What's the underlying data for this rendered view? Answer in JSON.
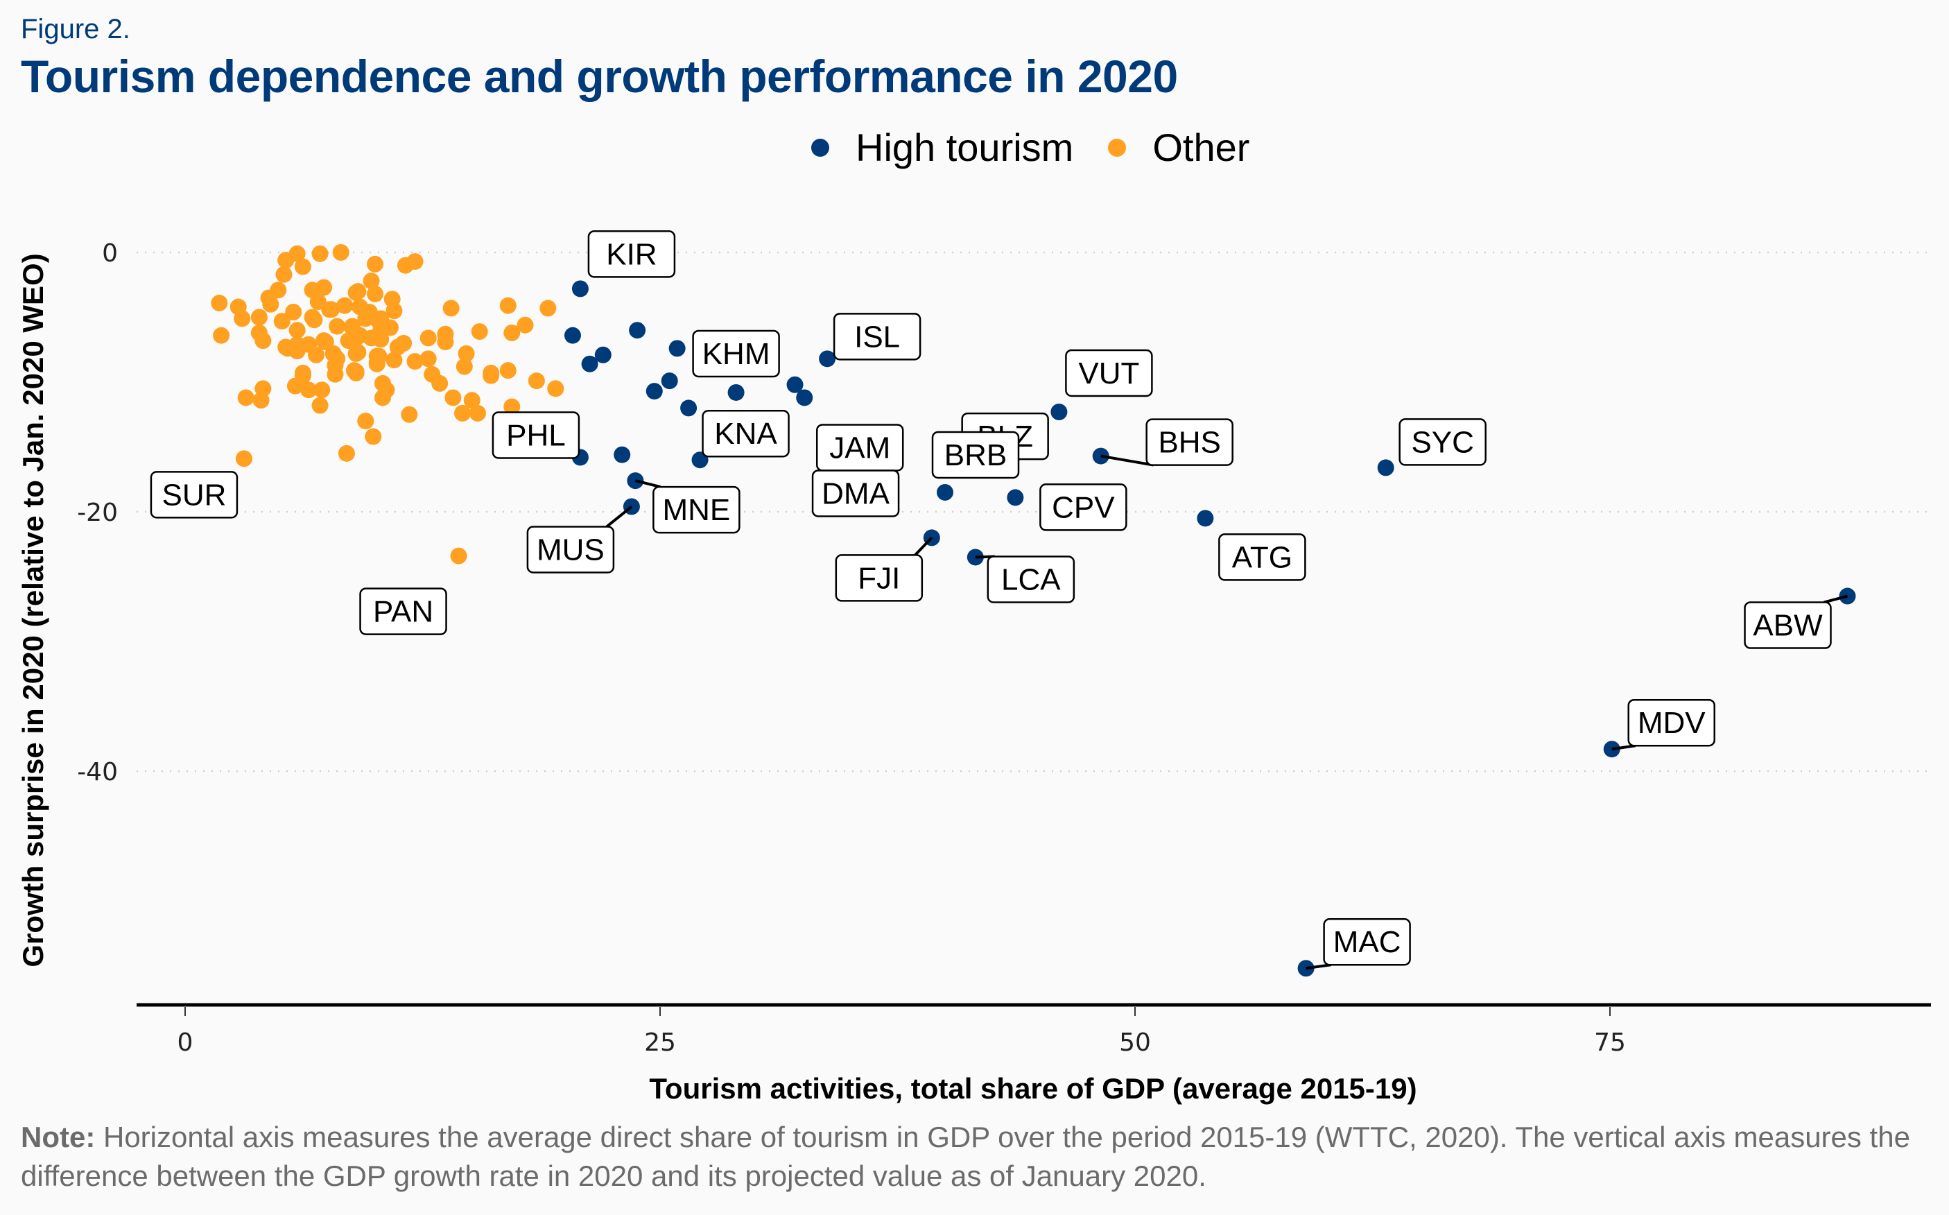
{
  "header": {
    "figure_label": "Figure 2.",
    "title": "Tourism dependence and growth performance in 2020"
  },
  "legend": [
    {
      "label": "High tourism",
      "color": "#003a78"
    },
    {
      "label": "Other",
      "color": "#ffa020"
    }
  ],
  "note": {
    "prefix": "Note:",
    "text": " Horizontal axis measures the average direct share of tourism in GDP over the period 2015-19 (WTTC, 2020). The vertical axis measures the difference between the GDP growth rate in 2020 and its projected value as of January 2020."
  },
  "chart_data": {
    "type": "scatter",
    "title": "Tourism dependence and growth performance in 2020",
    "xlabel": "Tourism activities, total share of GDP (average 2015-19)",
    "ylabel": "Growth surprise in 2020 (relative to Jan. 2020 WEO)",
    "xlim": [
      -1.5,
      91.5
    ],
    "ylim": [
      -57.5,
      1.5
    ],
    "xticks": [
      0,
      25,
      50,
      75
    ],
    "yticks": [
      0,
      -20,
      -40
    ],
    "grid": "horizontal dotted",
    "legend_position": "top",
    "series": [
      {
        "name": "High tourism",
        "color": "#003a78",
        "points": [
          {
            "x": 20.8,
            "y": -2.8,
            "label": "KIR"
          },
          {
            "x": 20.4,
            "y": -6.4
          },
          {
            "x": 23.8,
            "y": -6.0
          },
          {
            "x": 22.0,
            "y": -7.9
          },
          {
            "x": 21.3,
            "y": -8.6
          },
          {
            "x": 25.9,
            "y": -7.4
          },
          {
            "x": 25.5,
            "y": -9.9
          },
          {
            "x": 24.7,
            "y": -10.7
          },
          {
            "x": 29.0,
            "y": -10.8,
            "label": "KHM"
          },
          {
            "x": 26.5,
            "y": -12.0
          },
          {
            "x": 33.8,
            "y": -8.2,
            "label": "ISL"
          },
          {
            "x": 32.1,
            "y": -10.2
          },
          {
            "x": 32.6,
            "y": -11.2,
            "label": "JAM"
          },
          {
            "x": 20.8,
            "y": -15.8,
            "label": "PHL"
          },
          {
            "x": 23.0,
            "y": -15.6
          },
          {
            "x": 27.1,
            "y": -16.0,
            "label": "KNA"
          },
          {
            "x": 23.7,
            "y": -17.6,
            "label": "MNE"
          },
          {
            "x": 23.5,
            "y": -19.6,
            "label": "MUS"
          },
          {
            "x": 36.9,
            "y": -15.8,
            "label": "DMA"
          },
          {
            "x": 40.9,
            "y": -16.1,
            "label": "BLZ"
          },
          {
            "x": 40.0,
            "y": -18.5,
            "label": "BRB"
          },
          {
            "x": 39.3,
            "y": -22.0,
            "label": "FJI"
          },
          {
            "x": 46.0,
            "y": -12.3,
            "label": "VUT"
          },
          {
            "x": 48.2,
            "y": -15.7,
            "label": "BHS"
          },
          {
            "x": 43.7,
            "y": -18.9,
            "label": "CPV"
          },
          {
            "x": 41.6,
            "y": -23.5,
            "label": "LCA"
          },
          {
            "x": 53.7,
            "y": -20.5,
            "label": "ATG"
          },
          {
            "x": 63.2,
            "y": -16.6,
            "label": "SYC"
          },
          {
            "x": 87.5,
            "y": -26.5,
            "label": "ABW"
          },
          {
            "x": 75.1,
            "y": -38.3,
            "label": "MDV"
          },
          {
            "x": 59.0,
            "y": -55.2,
            "label": "MAC"
          }
        ]
      },
      {
        "name": "Other",
        "color": "#ffa020",
        "points": [
          {
            "x": 3.1,
            "y": -15.9,
            "label": "SUR"
          },
          {
            "x": 14.4,
            "y": -23.4,
            "label": "PAN"
          },
          {
            "x": 1.8,
            "y": -3.9
          },
          {
            "x": 1.9,
            "y": -6.4
          },
          {
            "x": 2.8,
            "y": -4.2
          },
          {
            "x": 3.0,
            "y": -5.1
          },
          {
            "x": 5.9,
            "y": -0.1
          },
          {
            "x": 5.3,
            "y": -0.6
          },
          {
            "x": 6.2,
            "y": -1.1
          },
          {
            "x": 5.2,
            "y": -1.7
          },
          {
            "x": 7.1,
            "y": -0.1
          },
          {
            "x": 8.2,
            "y": 0.0
          },
          {
            "x": 10.0,
            "y": -0.9
          },
          {
            "x": 9.8,
            "y": -2.2
          },
          {
            "x": 4.9,
            "y": -2.9
          },
          {
            "x": 4.4,
            "y": -3.5
          },
          {
            "x": 4.5,
            "y": -4.0
          },
          {
            "x": 3.9,
            "y": -5.0
          },
          {
            "x": 3.9,
            "y": -6.2
          },
          {
            "x": 4.1,
            "y": -6.8
          },
          {
            "x": 5.1,
            "y": -5.3
          },
          {
            "x": 5.7,
            "y": -4.6
          },
          {
            "x": 6.7,
            "y": -2.9
          },
          {
            "x": 7.3,
            "y": -2.7
          },
          {
            "x": 7.0,
            "y": -3.8
          },
          {
            "x": 6.8,
            "y": -5.2
          },
          {
            "x": 7.6,
            "y": -4.4
          },
          {
            "x": 8.4,
            "y": -4.1
          },
          {
            "x": 9.0,
            "y": -3.1
          },
          {
            "x": 5.4,
            "y": -7.4
          },
          {
            "x": 5.9,
            "y": -7.1
          },
          {
            "x": 6.5,
            "y": -7.1
          },
          {
            "x": 6.9,
            "y": -7.9
          },
          {
            "x": 7.3,
            "y": -6.8
          },
          {
            "x": 8.0,
            "y": -8.2
          },
          {
            "x": 7.9,
            "y": -9.4
          },
          {
            "x": 9.0,
            "y": -9.3
          },
          {
            "x": 9.1,
            "y": -7.7
          },
          {
            "x": 8.6,
            "y": -6.8
          },
          {
            "x": 6.2,
            "y": -9.5
          },
          {
            "x": 5.8,
            "y": -10.3
          },
          {
            "x": 6.5,
            "y": -10.6
          },
          {
            "x": 7.2,
            "y": -10.6
          },
          {
            "x": 7.1,
            "y": -11.8
          },
          {
            "x": 4.1,
            "y": -10.5
          },
          {
            "x": 3.2,
            "y": -11.2
          },
          {
            "x": 4.0,
            "y": -11.4
          },
          {
            "x": 9.5,
            "y": -13.0
          },
          {
            "x": 9.9,
            "y": -14.2
          },
          {
            "x": 10.1,
            "y": -8.5
          },
          {
            "x": 11.6,
            "y": -1.0
          },
          {
            "x": 12.1,
            "y": -0.7
          },
          {
            "x": 10.0,
            "y": -3.2
          },
          {
            "x": 10.9,
            "y": -3.6
          },
          {
            "x": 11.0,
            "y": -4.5
          },
          {
            "x": 10.8,
            "y": -5.8
          },
          {
            "x": 10.3,
            "y": -5.1
          },
          {
            "x": 9.7,
            "y": -4.6
          },
          {
            "x": 9.2,
            "y": -4.2
          },
          {
            "x": 8.8,
            "y": -5.8
          },
          {
            "x": 9.2,
            "y": -6.4
          },
          {
            "x": 10.3,
            "y": -6.7
          },
          {
            "x": 10.1,
            "y": -8.0
          },
          {
            "x": 10.1,
            "y": -8.6
          },
          {
            "x": 11.0,
            "y": -8.3
          },
          {
            "x": 11.5,
            "y": -7.0
          },
          {
            "x": 11.2,
            "y": -7.3
          },
          {
            "x": 9.0,
            "y": -9.2
          },
          {
            "x": 10.4,
            "y": -10.1
          },
          {
            "x": 10.6,
            "y": -10.6
          },
          {
            "x": 10.4,
            "y": -11.2
          },
          {
            "x": 11.8,
            "y": -12.5
          },
          {
            "x": 12.8,
            "y": -6.6
          },
          {
            "x": 12.1,
            "y": -8.4
          },
          {
            "x": 12.8,
            "y": -8.2
          },
          {
            "x": 13.0,
            "y": -9.4
          },
          {
            "x": 13.4,
            "y": -10.1
          },
          {
            "x": 14.0,
            "y": -4.3
          },
          {
            "x": 13.7,
            "y": -6.3
          },
          {
            "x": 13.7,
            "y": -6.9
          },
          {
            "x": 14.8,
            "y": -7.8
          },
          {
            "x": 14.7,
            "y": -8.8
          },
          {
            "x": 14.1,
            "y": -11.2
          },
          {
            "x": 15.1,
            "y": -11.4
          },
          {
            "x": 14.6,
            "y": -12.4
          },
          {
            "x": 15.4,
            "y": -12.4
          },
          {
            "x": 15.5,
            "y": -6.1
          },
          {
            "x": 16.1,
            "y": -9.3
          },
          {
            "x": 16.1,
            "y": -9.5
          },
          {
            "x": 17.0,
            "y": -4.1
          },
          {
            "x": 17.2,
            "y": -6.2
          },
          {
            "x": 17.9,
            "y": -5.6
          },
          {
            "x": 17.0,
            "y": -9.1
          },
          {
            "x": 17.2,
            "y": -11.9
          },
          {
            "x": 18.5,
            "y": -9.9
          },
          {
            "x": 19.1,
            "y": -4.3
          },
          {
            "x": 19.5,
            "y": -10.5
          },
          {
            "x": 6.7,
            "y": -5.0
          },
          {
            "x": 7.7,
            "y": -4.4
          },
          {
            "x": 9.1,
            "y": -3.0
          },
          {
            "x": 8.0,
            "y": -5.7
          },
          {
            "x": 8.8,
            "y": -5.7
          },
          {
            "x": 9.5,
            "y": -5.1
          },
          {
            "x": 10.2,
            "y": -5.3
          },
          {
            "x": 9.0,
            "y": -6.6
          },
          {
            "x": 9.8,
            "y": -6.6
          },
          {
            "x": 10.3,
            "y": -6.0
          },
          {
            "x": 5.9,
            "y": -6.0
          },
          {
            "x": 5.3,
            "y": -7.3
          },
          {
            "x": 5.9,
            "y": -7.6
          },
          {
            "x": 7.4,
            "y": -6.9
          },
          {
            "x": 7.8,
            "y": -7.8
          },
          {
            "x": 9.0,
            "y": -7.8
          },
          {
            "x": 10.2,
            "y": -8.0
          },
          {
            "x": 7.9,
            "y": -8.7
          },
          {
            "x": 8.9,
            "y": -9.1
          },
          {
            "x": 6.2,
            "y": -9.3
          },
          {
            "x": 8.5,
            "y": -15.5
          }
        ]
      }
    ]
  }
}
